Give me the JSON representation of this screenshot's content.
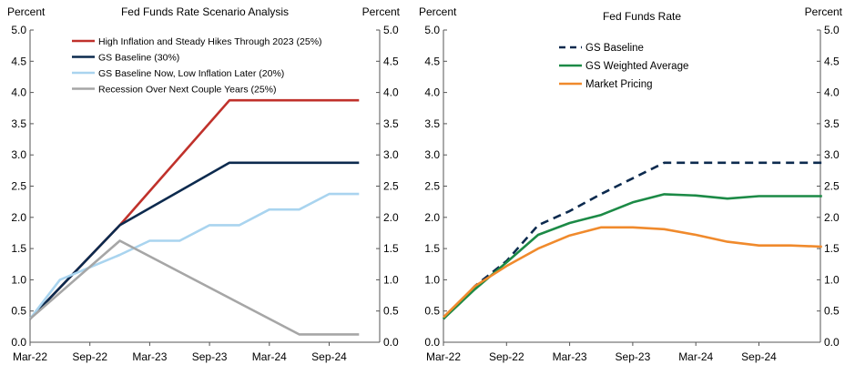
{
  "chart_data": [
    {
      "type": "line",
      "title": "Fed Funds Rate Scenario Analysis",
      "ylabel_left": "Percent",
      "ylabel_right": "Percent",
      "ylim": [
        0,
        5
      ],
      "yticks": [
        "0.0",
        "0.5",
        "1.0",
        "1.5",
        "2.0",
        "2.5",
        "3.0",
        "3.5",
        "4.0",
        "4.5",
        "5.0"
      ],
      "xlim": [
        0,
        33
      ],
      "xticks": [
        {
          "label": "Mar-22",
          "t": 0
        },
        {
          "label": "Sep-22",
          "t": 6
        },
        {
          "label": "Mar-23",
          "t": 12
        },
        {
          "label": "Sep-23",
          "t": 18
        },
        {
          "label": "Mar-24",
          "t": 24
        },
        {
          "label": "Sep-24",
          "t": 30
        }
      ],
      "legend_position": "top-left",
      "series": [
        {
          "name": "High Inflation and Steady Hikes Through 2023 (25%)",
          "color": "#c0312b",
          "dash": false,
          "x": [
            0,
            9,
            20,
            33
          ],
          "y": [
            0.375,
            1.875,
            3.875,
            3.875
          ]
        },
        {
          "name": "GS Baseline (30%)",
          "color": "#0c2a4e",
          "dash": false,
          "x": [
            0,
            9,
            20,
            33
          ],
          "y": [
            0.375,
            1.875,
            2.875,
            2.875
          ]
        },
        {
          "name": "GS Baseline Now, Low Inflation Later (20%)",
          "color": "#a9d4ef",
          "dash": false,
          "x": [
            0,
            3,
            6,
            9,
            12,
            15,
            18,
            21,
            24,
            27,
            30,
            33
          ],
          "y": [
            0.375,
            1.0,
            1.2,
            1.4,
            1.625,
            1.625,
            1.875,
            1.875,
            2.125,
            2.125,
            2.375,
            2.375
          ]
        },
        {
          "name": "Recession Over Next Couple Years (25%)",
          "color": "#a6a6a6",
          "dash": false,
          "x": [
            0,
            9,
            27,
            33
          ],
          "y": [
            0.375,
            1.625,
            0.125,
            0.125
          ]
        }
      ]
    },
    {
      "type": "line",
      "title": "Fed Funds Rate",
      "ylabel_left": "Percent",
      "ylabel_right": "Percent",
      "ylim": [
        0,
        5
      ],
      "yticks": [
        "0.0",
        "0.5",
        "1.0",
        "1.5",
        "2.0",
        "2.5",
        "3.0",
        "3.5",
        "4.0",
        "4.5",
        "5.0"
      ],
      "xlim": [
        0,
        36
      ],
      "xticks": [
        {
          "label": "Mar-22",
          "t": 0
        },
        {
          "label": "Sep-22",
          "t": 6
        },
        {
          "label": "Mar-23",
          "t": 12
        },
        {
          "label": "Sep-23",
          "t": 18
        },
        {
          "label": "Mar-24",
          "t": 24
        },
        {
          "label": "Sep-24",
          "t": 30
        }
      ],
      "legend_position": "top-left",
      "series": [
        {
          "name": "GS Baseline",
          "color": "#0c2a4e",
          "dash": true,
          "x": [
            0,
            3,
            6,
            9,
            12,
            15,
            18,
            21,
            24,
            27,
            30,
            33,
            36
          ],
          "y": [
            0.375,
            0.9,
            1.3,
            1.875,
            2.1,
            2.375,
            2.625,
            2.875,
            2.875,
            2.875,
            2.875,
            2.875,
            2.875
          ]
        },
        {
          "name": "GS Weighted Average",
          "color": "#1c8a46",
          "dash": false,
          "x": [
            0,
            3,
            6,
            9,
            12,
            15,
            18,
            21,
            24,
            27,
            30,
            33,
            36
          ],
          "y": [
            0.375,
            0.85,
            1.28,
            1.72,
            1.91,
            2.04,
            2.24,
            2.37,
            2.35,
            2.3,
            2.34,
            2.34,
            2.34
          ]
        },
        {
          "name": "Market Pricing",
          "color": "#f08a2c",
          "dash": false,
          "x": [
            0,
            3,
            6,
            9,
            12,
            15,
            18,
            21,
            24,
            27,
            30,
            33,
            36
          ],
          "y": [
            0.4,
            0.9,
            1.22,
            1.5,
            1.71,
            1.84,
            1.84,
            1.81,
            1.72,
            1.61,
            1.55,
            1.55,
            1.53
          ]
        }
      ]
    }
  ]
}
